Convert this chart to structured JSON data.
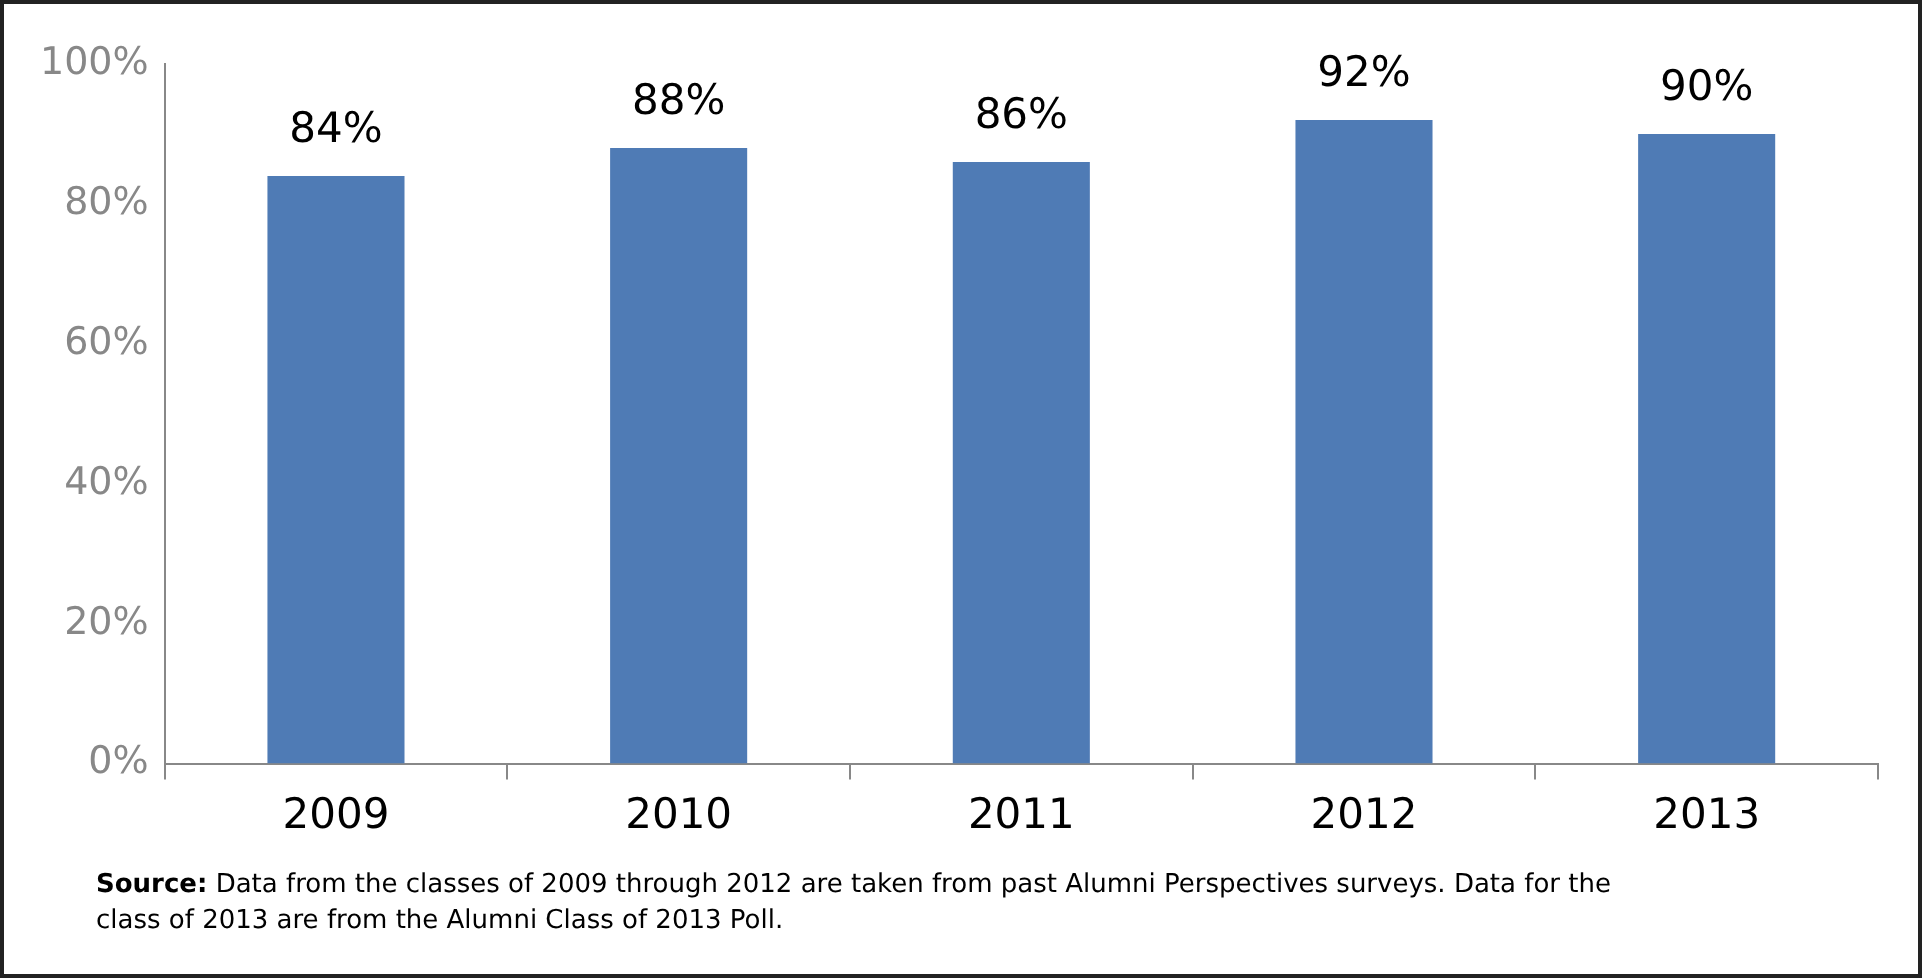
{
  "chart_data": {
    "type": "bar",
    "categories": [
      "2009",
      "2010",
      "2011",
      "2012",
      "2013"
    ],
    "values": [
      84,
      88,
      86,
      92,
      90
    ],
    "color": "#4f7bb5",
    "value_labels": [
      "84%",
      "88%",
      "86%",
      "92%",
      "90%"
    ],
    "ylim": [
      0,
      100
    ],
    "yticks": [
      {
        "value": 0,
        "label": "0%"
      },
      {
        "value": 20,
        "label": "20%"
      },
      {
        "value": 40,
        "label": "40%"
      },
      {
        "value": 60,
        "label": "60%"
      },
      {
        "value": 80,
        "label": "80%"
      },
      {
        "value": 100,
        "label": "100%"
      }
    ],
    "grid": false,
    "legend": false,
    "annotations": [
      "Source: Data from the classes of 2009 through 2012 are taken from past Alumni Perspectives surveys. Data for the class of 2013 are from the Alumni Class of 2013 Poll."
    ]
  }
}
